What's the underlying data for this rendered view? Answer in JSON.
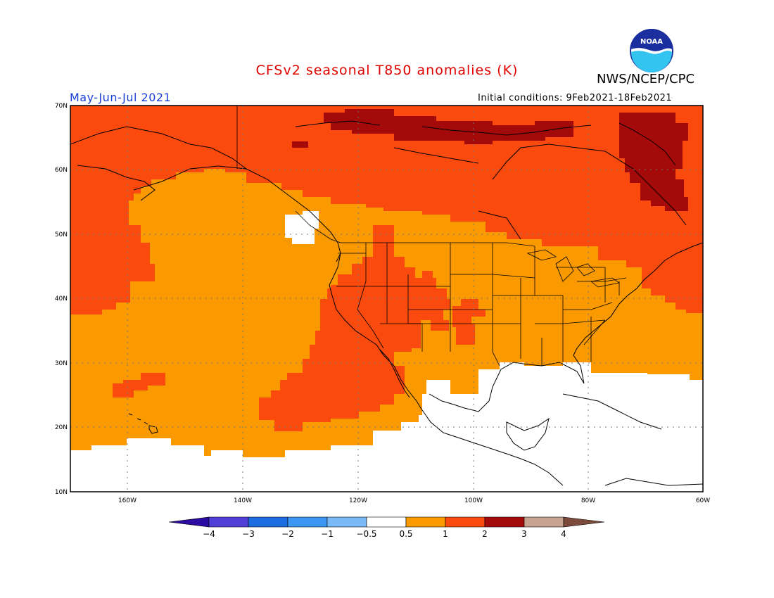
{
  "header": {
    "title": "CFSv2 seasonal T850 anomalies (K)",
    "title_color": "#e00000",
    "organization": "NWS/NCEP/CPC",
    "period": "May-Jun-Jul 2021",
    "period_color": "#1a3fd8",
    "initial_conditions": "Initial conditions: 9Feb2021-18Feb2021",
    "logo_text": "NOAA"
  },
  "map": {
    "region": "North Pacific / North America",
    "lat_range": [
      10,
      70
    ],
    "lon_range": [
      -172,
      -60
    ],
    "lat_labels": [
      "70N",
      "60N",
      "50N",
      "40N",
      "30N",
      "20N",
      "10N"
    ],
    "lon_labels": [
      "160W",
      "140W",
      "120W",
      "100W",
      "80W",
      "60W"
    ],
    "shading": {
      "none": "#ffffff",
      "a05_1": "#fa9a00",
      "a1_2": "#fb4a0e",
      "a2_3": "#a50a0a"
    }
  },
  "colorbar": {
    "labels": [
      "-4",
      "-3",
      "-2",
      "-1",
      "-0.5",
      "0.5",
      "1",
      "2",
      "3",
      "4"
    ],
    "colors": [
      "#2c0ba2",
      "#5040d8",
      "#1c6ee0",
      "#3c96f2",
      "#78b9f6",
      "#ffffff",
      "#fa9a00",
      "#fb4a0e",
      "#a50a0a",
      "#c6a290",
      "#7c4a3a"
    ]
  }
}
